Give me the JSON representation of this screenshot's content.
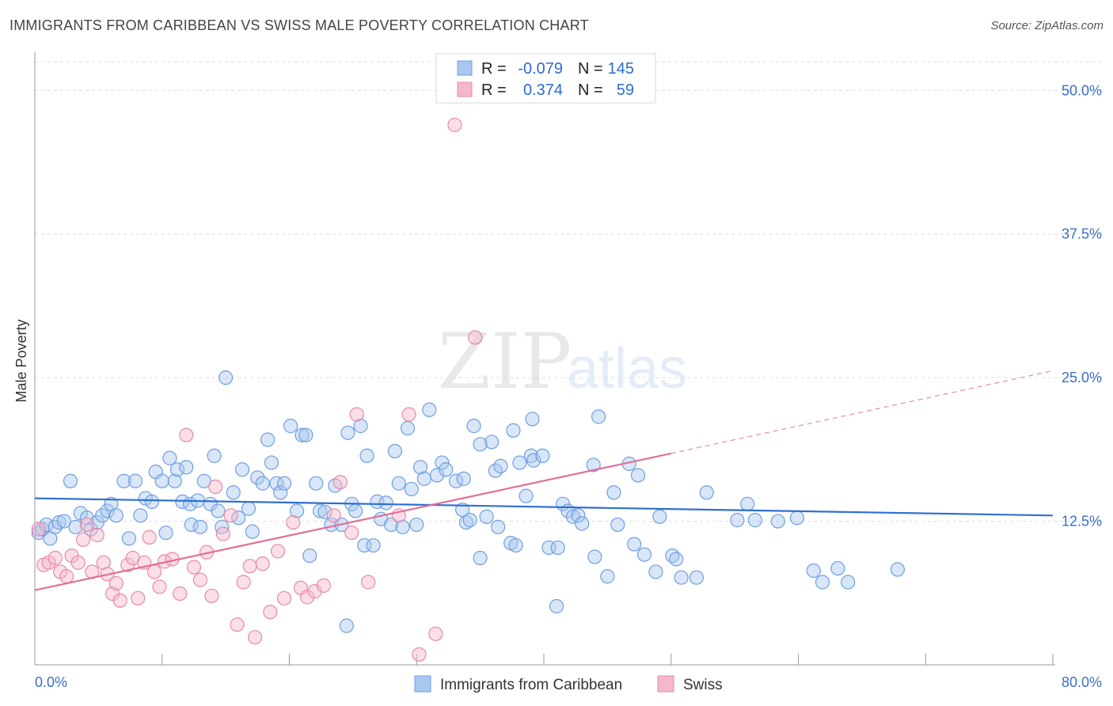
{
  "header": {
    "title": "IMMIGRANTS FROM CARIBBEAN VS SWISS MALE POVERTY CORRELATION CHART",
    "source": "Source: ZipAtlas.com"
  },
  "watermark": {
    "zip": "ZIP",
    "atlas": "atlas"
  },
  "legend_top": {
    "rows": [
      {
        "r_label": "R =",
        "r_value": "-0.079",
        "n_label": "N =",
        "n_value": "145"
      },
      {
        "r_label": "R =",
        "r_value": "0.374",
        "n_label": "N =",
        "n_value": "59"
      }
    ]
  },
  "legend_bottom": {
    "items": [
      "Immigrants from Caribbean",
      "Swiss"
    ]
  },
  "colors": {
    "blue_fill": "#a9c8f0",
    "blue_stroke": "#6e9fe0",
    "blue_line": "#2f6fcf",
    "pink_fill": "#f5b8cb",
    "pink_stroke": "#e889a8",
    "pink_line": "#e06f96",
    "tick_text": "#3a6fc4"
  },
  "chart_data": {
    "type": "scatter",
    "title": "IMMIGRANTS FROM CARIBBEAN VS SWISS MALE POVERTY CORRELATION CHART",
    "ylabel": "Male Poverty",
    "xlim": [
      0,
      80
    ],
    "ylim": [
      0,
      52.5
    ],
    "x_tick_labels": [
      "0.0%",
      "80.0%"
    ],
    "y_ticks": [
      12.5,
      25.0,
      37.5,
      50.0
    ],
    "y_tick_labels": [
      "12.5%",
      "25.0%",
      "37.5%",
      "50.0%"
    ],
    "grid": true,
    "series": [
      {
        "name": "Immigrants from Caribbean",
        "r": -0.079,
        "n": 145,
        "trend": {
          "x0": 0,
          "y0": 14.5,
          "x1": 80,
          "y1": 13.0
        },
        "points": [
          [
            0.3,
            11.5
          ],
          [
            0.6,
            11.8
          ],
          [
            0.9,
            12.2
          ],
          [
            1.2,
            11.0
          ],
          [
            1.6,
            12.0
          ],
          [
            1.9,
            12.4
          ],
          [
            2.3,
            12.5
          ],
          [
            2.8,
            16.0
          ],
          [
            3.2,
            12.0
          ],
          [
            3.6,
            13.2
          ],
          [
            4.1,
            12.8
          ],
          [
            4.4,
            11.8
          ],
          [
            4.9,
            12.4
          ],
          [
            5.3,
            13.0
          ],
          [
            5.7,
            13.4
          ],
          [
            6.0,
            14.0
          ],
          [
            6.4,
            13.0
          ],
          [
            7.0,
            16.0
          ],
          [
            7.4,
            11.0
          ],
          [
            7.9,
            16.0
          ],
          [
            8.3,
            13.0
          ],
          [
            8.7,
            14.5
          ],
          [
            9.2,
            14.2
          ],
          [
            9.5,
            16.8
          ],
          [
            10.0,
            16.0
          ],
          [
            10.3,
            11.5
          ],
          [
            10.6,
            18.0
          ],
          [
            11.0,
            16.0
          ],
          [
            11.2,
            17.0
          ],
          [
            11.6,
            14.2
          ],
          [
            11.9,
            17.2
          ],
          [
            12.2,
            14.0
          ],
          [
            12.3,
            12.2
          ],
          [
            12.8,
            14.3
          ],
          [
            13.0,
            12.0
          ],
          [
            13.3,
            16.0
          ],
          [
            13.8,
            14.0
          ],
          [
            14.1,
            18.2
          ],
          [
            14.4,
            13.4
          ],
          [
            14.7,
            12.0
          ],
          [
            15.0,
            25.0
          ],
          [
            15.6,
            15.0
          ],
          [
            16.0,
            12.8
          ],
          [
            16.3,
            17.0
          ],
          [
            16.8,
            13.6
          ],
          [
            17.1,
            11.6
          ],
          [
            17.5,
            16.3
          ],
          [
            17.9,
            15.8
          ],
          [
            18.3,
            19.6
          ],
          [
            18.6,
            17.6
          ],
          [
            19.0,
            15.8
          ],
          [
            19.3,
            15.0
          ],
          [
            19.6,
            15.8
          ],
          [
            20.1,
            20.8
          ],
          [
            20.6,
            13.4
          ],
          [
            21.0,
            20.0
          ],
          [
            21.3,
            20.0
          ],
          [
            21.6,
            9.5
          ],
          [
            22.1,
            15.8
          ],
          [
            22.4,
            13.4
          ],
          [
            22.8,
            13.3
          ],
          [
            23.3,
            12.2
          ],
          [
            23.6,
            15.6
          ],
          [
            24.1,
            12.2
          ],
          [
            24.6,
            20.2
          ],
          [
            24.9,
            14.0
          ],
          [
            25.2,
            13.4
          ],
          [
            25.6,
            20.8
          ],
          [
            25.9,
            10.4
          ],
          [
            26.1,
            18.2
          ],
          [
            26.6,
            10.4
          ],
          [
            26.9,
            14.2
          ],
          [
            27.2,
            12.7
          ],
          [
            27.6,
            14.1
          ],
          [
            28.0,
            12.2
          ],
          [
            28.3,
            18.6
          ],
          [
            28.6,
            15.8
          ],
          [
            28.9,
            12.0
          ],
          [
            29.3,
            20.6
          ],
          [
            29.6,
            15.3
          ],
          [
            30.0,
            12.2
          ],
          [
            30.3,
            17.2
          ],
          [
            30.6,
            16.2
          ],
          [
            31.0,
            22.2
          ],
          [
            31.6,
            16.5
          ],
          [
            32.0,
            17.6
          ],
          [
            32.3,
            17.0
          ],
          [
            33.1,
            16.0
          ],
          [
            33.6,
            13.5
          ],
          [
            33.9,
            12.4
          ],
          [
            34.2,
            12.6
          ],
          [
            34.5,
            20.8
          ],
          [
            35.0,
            9.3
          ],
          [
            35.5,
            12.9
          ],
          [
            35.9,
            19.4
          ],
          [
            36.2,
            16.9
          ],
          [
            36.6,
            17.3
          ],
          [
            37.4,
            10.6
          ],
          [
            37.8,
            10.4
          ],
          [
            38.1,
            17.6
          ],
          [
            38.6,
            14.7
          ],
          [
            39.0,
            18.2
          ],
          [
            39.2,
            17.8
          ],
          [
            39.9,
            18.2
          ],
          [
            40.4,
            10.2
          ],
          [
            41.1,
            10.2
          ],
          [
            41.5,
            14.0
          ],
          [
            41.9,
            13.4
          ],
          [
            42.3,
            12.9
          ],
          [
            42.7,
            13.0
          ],
          [
            44.0,
            9.4
          ],
          [
            45.0,
            7.7
          ],
          [
            45.5,
            15.0
          ],
          [
            47.1,
            10.5
          ],
          [
            47.4,
            16.5
          ],
          [
            47.9,
            9.6
          ],
          [
            48.8,
            8.1
          ],
          [
            49.1,
            12.9
          ],
          [
            50.1,
            9.5
          ],
          [
            50.4,
            9.2
          ],
          [
            50.8,
            7.6
          ],
          [
            52.0,
            7.6
          ],
          [
            52.8,
            15.0
          ],
          [
            56.0,
            14.0
          ],
          [
            55.2,
            12.6
          ],
          [
            56.6,
            12.6
          ],
          [
            58.4,
            12.5
          ],
          [
            59.9,
            12.8
          ],
          [
            61.2,
            8.2
          ],
          [
            61.9,
            7.2
          ],
          [
            63.1,
            8.4
          ],
          [
            63.9,
            7.2
          ],
          [
            67.8,
            8.3
          ],
          [
            43.0,
            12.3
          ],
          [
            24.5,
            3.4
          ],
          [
            41.0,
            5.1
          ],
          [
            46.7,
            17.5
          ],
          [
            44.3,
            21.6
          ],
          [
            43.9,
            17.4
          ],
          [
            39.1,
            21.4
          ],
          [
            37.6,
            20.4
          ],
          [
            36.4,
            12.0
          ],
          [
            35.0,
            19.2
          ],
          [
            33.7,
            16.2
          ],
          [
            45.8,
            12.2
          ]
        ]
      },
      {
        "name": "Swiss",
        "r": 0.374,
        "n": 59,
        "trend": {
          "x0": 0,
          "y0": 6.5,
          "x1": 50,
          "y1": 18.4,
          "dashed_to": {
            "x": 80,
            "y": 25.6
          }
        },
        "points": [
          [
            0.3,
            11.8
          ],
          [
            0.7,
            8.7
          ],
          [
            1.1,
            8.9
          ],
          [
            1.6,
            9.3
          ],
          [
            2.0,
            8.1
          ],
          [
            2.5,
            7.7
          ],
          [
            2.9,
            9.5
          ],
          [
            3.4,
            8.9
          ],
          [
            3.8,
            10.9
          ],
          [
            4.1,
            12.2
          ],
          [
            4.5,
            8.1
          ],
          [
            4.9,
            11.3
          ],
          [
            5.4,
            8.9
          ],
          [
            5.7,
            7.9
          ],
          [
            6.1,
            6.2
          ],
          [
            6.4,
            7.1
          ],
          [
            6.7,
            5.6
          ],
          [
            7.3,
            8.7
          ],
          [
            7.7,
            9.3
          ],
          [
            8.1,
            5.8
          ],
          [
            8.6,
            8.9
          ],
          [
            9.0,
            11.1
          ],
          [
            9.4,
            8.1
          ],
          [
            9.8,
            6.8
          ],
          [
            10.2,
            9.0
          ],
          [
            10.8,
            9.2
          ],
          [
            11.4,
            6.2
          ],
          [
            11.9,
            20.0
          ],
          [
            12.5,
            8.5
          ],
          [
            13.0,
            7.4
          ],
          [
            13.5,
            9.8
          ],
          [
            13.9,
            6.0
          ],
          [
            14.2,
            15.5
          ],
          [
            14.8,
            11.4
          ],
          [
            15.4,
            13.0
          ],
          [
            15.9,
            3.5
          ],
          [
            16.4,
            7.2
          ],
          [
            16.9,
            8.6
          ],
          [
            17.3,
            2.4
          ],
          [
            17.9,
            8.8
          ],
          [
            18.5,
            4.6
          ],
          [
            19.1,
            9.9
          ],
          [
            19.6,
            5.8
          ],
          [
            20.3,
            12.4
          ],
          [
            20.9,
            6.7
          ],
          [
            21.4,
            5.9
          ],
          [
            22.0,
            6.4
          ],
          [
            22.7,
            6.9
          ],
          [
            23.5,
            13.0
          ],
          [
            24.0,
            15.9
          ],
          [
            24.9,
            11.5
          ],
          [
            25.3,
            21.8
          ],
          [
            26.2,
            7.2
          ],
          [
            28.6,
            13.0
          ],
          [
            29.4,
            21.8
          ],
          [
            30.2,
            0.9
          ],
          [
            31.5,
            2.7
          ],
          [
            33.0,
            47.0
          ],
          [
            34.6,
            28.5
          ]
        ]
      }
    ]
  }
}
